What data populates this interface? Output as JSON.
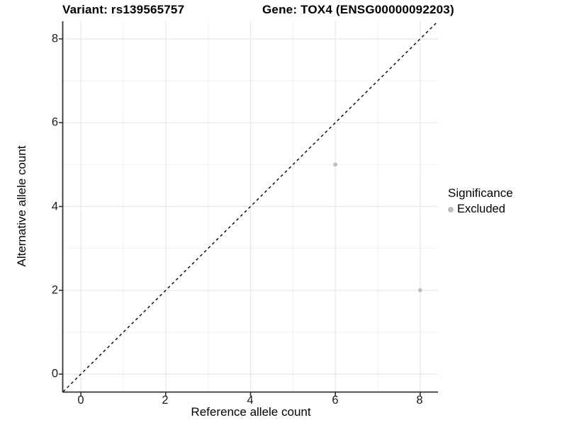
{
  "title": {
    "variant": "Variant: rs139565757",
    "gene": "Gene: TOX4 (ENSG00000092203)"
  },
  "legend": {
    "title": "Significance",
    "items": [
      {
        "label": "Excluded",
        "color": "#bebebe"
      }
    ]
  },
  "chart_data": {
    "type": "scatter",
    "title": "Variant: rs139565757 | Gene: TOX4 (ENSG00000092203)",
    "xlabel": "Reference allele count",
    "ylabel": "Alternative allele count",
    "xlim": [
      -0.42,
      8.42
    ],
    "ylim": [
      -0.42,
      8.42
    ],
    "x_ticks": [
      0,
      2,
      4,
      6,
      8
    ],
    "y_ticks": [
      0,
      2,
      4,
      6,
      8
    ],
    "x_tick_labels": [
      "0",
      "2",
      "4",
      "6",
      "8"
    ],
    "y_tick_labels": [
      "0",
      "2",
      "4",
      "6",
      "8"
    ],
    "minor_x": [
      1,
      3,
      5,
      7
    ],
    "minor_y": [
      1,
      3,
      5,
      7
    ],
    "grid": true,
    "legend_position": "right",
    "reference_line": {
      "type": "identity",
      "slope": 1,
      "intercept": 0,
      "style": "dashed",
      "color": "#000000"
    },
    "series": [
      {
        "name": "Excluded",
        "color": "#bebebe",
        "points": [
          [
            6,
            5
          ],
          [
            8,
            2
          ]
        ]
      }
    ]
  },
  "colors": {
    "background": "#ffffff",
    "grid_major": "#e6e6e6",
    "grid_minor": "#f1f1f1",
    "axis_line": "#333333",
    "point": "#bebebe",
    "dashed_line": "#000000",
    "text": "#000000"
  }
}
